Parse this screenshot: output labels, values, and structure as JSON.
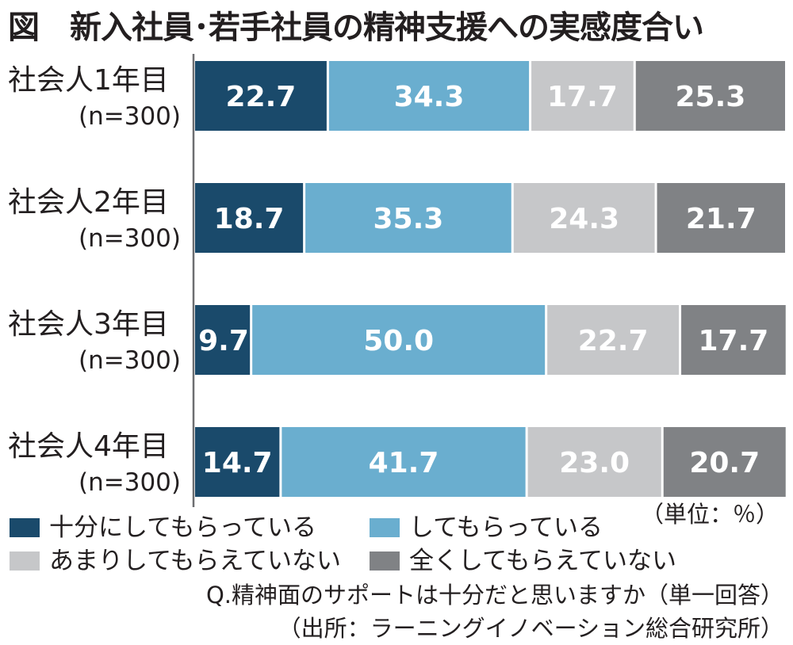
{
  "title": "図　新入社員･若手社員の精神支援への実感度合い",
  "unit_note": "（単位：％）",
  "question": "Q.精神面のサポートは十分だと思いますか（単一回答）",
  "source": "（出所：ラーニングイノベーション総合研究所）",
  "legend": [
    {
      "label": "十分にしてもらっている",
      "color": "#1a4a6b"
    },
    {
      "label": "してもらっている",
      "color": "#6aaecf"
    },
    {
      "label": "あまりしてもらえていない",
      "color": "#c6c7c9"
    },
    {
      "label": "全くしてもらえていない",
      "color": "#808285"
    }
  ],
  "chart_data": {
    "type": "bar",
    "orientation": "horizontal",
    "stacked": true,
    "unit": "%",
    "xlim": [
      0,
      100
    ],
    "categories": [
      {
        "label": "社会人1年目",
        "n": "(n=300)"
      },
      {
        "label": "社会人2年目",
        "n": "(n=300)"
      },
      {
        "label": "社会人3年目",
        "n": "(n=300)"
      },
      {
        "label": "社会人4年目",
        "n": "(n=300)"
      }
    ],
    "series": [
      {
        "name": "十分にしてもらっている",
        "color": "#1a4a6b",
        "values": [
          22.7,
          18.7,
          9.7,
          14.7
        ]
      },
      {
        "name": "してもらっている",
        "color": "#6aaecf",
        "values": [
          34.3,
          35.3,
          50.0,
          41.7
        ]
      },
      {
        "name": "あまりしてもらえていない",
        "color": "#c6c7c9",
        "values": [
          17.7,
          24.3,
          22.7,
          23.0
        ]
      },
      {
        "name": "全くしてもらえていない",
        "color": "#808285",
        "values": [
          25.3,
          21.7,
          17.7,
          20.7
        ]
      }
    ],
    "grid": false,
    "legend_position": "bottom"
  }
}
